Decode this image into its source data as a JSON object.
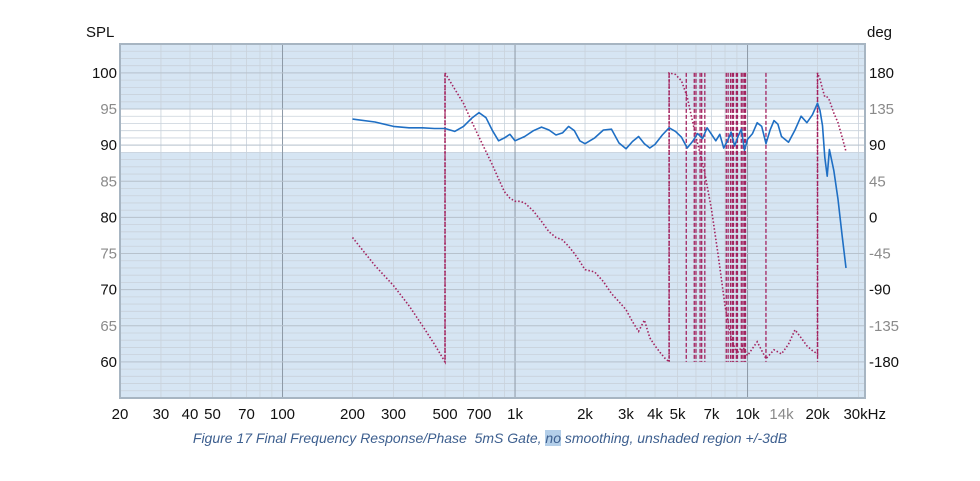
{
  "caption": {
    "before": "Figure 17 Final Frequency Response/Phase  5mS Gate, ",
    "highlight": "no",
    "after": " smoothing, unshaded region +/-3dB"
  },
  "chart_data": {
    "type": "line",
    "x_scale": "log",
    "xlim": [
      20,
      32000
    ],
    "ylim": [
      55,
      104
    ],
    "y2lim": [
      -225,
      216
    ],
    "ylabel": "SPL",
    "y2label": "deg",
    "x_ticks": [
      {
        "value": 20,
        "label": "20"
      },
      {
        "value": 30,
        "label": "30"
      },
      {
        "value": 40,
        "label": "40"
      },
      {
        "value": 50,
        "label": "50"
      },
      {
        "value": 70,
        "label": "70"
      },
      {
        "value": 100,
        "label": "100"
      },
      {
        "value": 200,
        "label": "200"
      },
      {
        "value": 300,
        "label": "300"
      },
      {
        "value": 500,
        "label": "500"
      },
      {
        "value": 700,
        "label": "700"
      },
      {
        "value": 1000,
        "label": "1k"
      },
      {
        "value": 2000,
        "label": "2k"
      },
      {
        "value": 3000,
        "label": "3k"
      },
      {
        "value": 4000,
        "label": "4k"
      },
      {
        "value": 5000,
        "label": "5k"
      },
      {
        "value": 7000,
        "label": "7k"
      },
      {
        "value": 10000,
        "label": "10k"
      },
      {
        "value": 14000,
        "label": "14k",
        "dim": true
      },
      {
        "value": 20000,
        "label": "20k"
      },
      {
        "value": 30000,
        "label": "30kHz"
      }
    ],
    "y_ticks": [
      {
        "value": 100,
        "label": "100"
      },
      {
        "value": 95,
        "label": "95",
        "dim": true
      },
      {
        "value": 90,
        "label": "90"
      },
      {
        "value": 85,
        "label": "85",
        "dim": true
      },
      {
        "value": 80,
        "label": "80"
      },
      {
        "value": 75,
        "label": "75",
        "dim": true
      },
      {
        "value": 70,
        "label": "70"
      },
      {
        "value": 65,
        "label": "65",
        "dim": true
      },
      {
        "value": 60,
        "label": "60"
      }
    ],
    "y2_ticks": [
      {
        "value": 180,
        "label": "180"
      },
      {
        "value": 135,
        "label": "135",
        "dim": true
      },
      {
        "value": 90,
        "label": "90"
      },
      {
        "value": 45,
        "label": "45",
        "dim": true
      },
      {
        "value": 0,
        "label": "0"
      },
      {
        "value": -45,
        "label": "-45",
        "dim": true
      },
      {
        "value": -90,
        "label": "-90"
      },
      {
        "value": -135,
        "label": "-135",
        "dim": true
      },
      {
        "value": -180,
        "label": "-180"
      }
    ],
    "unshaded_band": [
      89,
      95
    ],
    "colors": {
      "shade": "#d6e5f3",
      "band": "#ffffff",
      "frame": "#a7b5c2",
      "minor_grid": "#c9d2db",
      "major_grid": "#8d99a6",
      "spl": "#1f6fc4",
      "phase": "#a3235f"
    },
    "series": [
      {
        "key": "spl",
        "style": "solid",
        "points": [
          [
            200,
            93.6
          ],
          [
            250,
            93.2
          ],
          [
            300,
            92.6
          ],
          [
            350,
            92.4
          ],
          [
            400,
            92.4
          ],
          [
            450,
            92.3
          ],
          [
            500,
            92.3
          ],
          [
            550,
            91.9
          ],
          [
            600,
            92.6
          ],
          [
            650,
            93.7
          ],
          [
            700,
            94.5
          ],
          [
            750,
            93.8
          ],
          [
            800,
            92.0
          ],
          [
            850,
            90.6
          ],
          [
            900,
            91.0
          ],
          [
            950,
            91.5
          ],
          [
            1000,
            90.6
          ],
          [
            1100,
            91.2
          ],
          [
            1200,
            92.0
          ],
          [
            1300,
            92.5
          ],
          [
            1400,
            92.1
          ],
          [
            1500,
            91.4
          ],
          [
            1600,
            91.7
          ],
          [
            1700,
            92.6
          ],
          [
            1800,
            92.0
          ],
          [
            1900,
            90.6
          ],
          [
            2000,
            90.2
          ],
          [
            2200,
            91.0
          ],
          [
            2400,
            92.1
          ],
          [
            2600,
            92.2
          ],
          [
            2800,
            90.3
          ],
          [
            3000,
            89.5
          ],
          [
            3200,
            90.5
          ],
          [
            3400,
            91.2
          ],
          [
            3600,
            90.2
          ],
          [
            3800,
            89.6
          ],
          [
            4000,
            90.1
          ],
          [
            4300,
            91.4
          ],
          [
            4600,
            92.4
          ],
          [
            4900,
            91.9
          ],
          [
            5200,
            91.1
          ],
          [
            5500,
            89.6
          ],
          [
            5800,
            90.5
          ],
          [
            6100,
            91.6
          ],
          [
            6400,
            90.9
          ],
          [
            6700,
            92.4
          ],
          [
            7000,
            91.5
          ],
          [
            7300,
            90.6
          ],
          [
            7600,
            91.5
          ],
          [
            7900,
            89.6
          ],
          [
            8200,
            90.6
          ],
          [
            8500,
            91.8
          ],
          [
            8800,
            89.9
          ],
          [
            9100,
            91.2
          ],
          [
            9400,
            92.2
          ],
          [
            9700,
            89.3
          ],
          [
            10000,
            90.8
          ],
          [
            10500,
            91.6
          ],
          [
            11000,
            93.1
          ],
          [
            11500,
            92.6
          ],
          [
            12000,
            90.2
          ],
          [
            12500,
            92.1
          ],
          [
            13000,
            93.4
          ],
          [
            13500,
            92.9
          ],
          [
            14000,
            91.2
          ],
          [
            15000,
            90.4
          ],
          [
            16000,
            92.1
          ],
          [
            17000,
            94.0
          ],
          [
            18000,
            93.1
          ],
          [
            19000,
            94.2
          ],
          [
            20000,
            95.8
          ],
          [
            20500,
            94.8
          ],
          [
            21000,
            92.7
          ],
          [
            21500,
            88.3
          ],
          [
            22000,
            85.7
          ],
          [
            22500,
            89.4
          ],
          [
            23500,
            86.5
          ],
          [
            24500,
            82.5
          ],
          [
            25500,
            77.5
          ],
          [
            26500,
            73.0
          ]
        ]
      },
      {
        "key": "phase",
        "style": "dotted",
        "points": [
          [
            200,
            -25
          ],
          [
            250,
            -60
          ],
          [
            300,
            -85
          ],
          [
            350,
            -110
          ],
          [
            400,
            -135
          ],
          [
            450,
            -158
          ],
          [
            500,
            -180
          ],
          [
            500,
            180
          ],
          [
            550,
            160
          ],
          [
            600,
            142
          ],
          [
            650,
            120
          ],
          [
            700,
            100
          ],
          [
            750,
            82
          ],
          [
            800,
            65
          ],
          [
            850,
            48
          ],
          [
            900,
            32
          ],
          [
            950,
            24
          ],
          [
            1000,
            20
          ],
          [
            1050,
            20
          ],
          [
            1100,
            18
          ],
          [
            1200,
            8
          ],
          [
            1300,
            -5
          ],
          [
            1400,
            -18
          ],
          [
            1500,
            -25
          ],
          [
            1600,
            -28
          ],
          [
            1700,
            -36
          ],
          [
            1800,
            -45
          ],
          [
            1900,
            -55
          ],
          [
            2000,
            -65
          ],
          [
            2200,
            -68
          ],
          [
            2400,
            -80
          ],
          [
            2600,
            -95
          ],
          [
            2800,
            -105
          ],
          [
            3000,
            -115
          ],
          [
            3200,
            -130
          ],
          [
            3400,
            -142
          ],
          [
            3600,
            -128
          ],
          [
            3800,
            -150
          ],
          [
            4000,
            -160
          ],
          [
            4200,
            -168
          ],
          [
            4400,
            -175
          ],
          [
            4600,
            -180
          ],
          [
            4600,
            180
          ],
          [
            4900,
            178
          ],
          [
            5200,
            170
          ],
          [
            5500,
            150
          ],
          [
            6000,
            100
          ],
          [
            6500,
            60
          ],
          [
            7000,
            10
          ],
          [
            7500,
            -50
          ],
          [
            8000,
            -110
          ],
          [
            8500,
            -150
          ],
          [
            9000,
            -170
          ],
          [
            9500,
            -160
          ],
          [
            10000,
            -172
          ],
          [
            11000,
            -155
          ],
          [
            12000,
            -176
          ],
          [
            13000,
            -165
          ],
          [
            14000,
            -170
          ],
          [
            15000,
            -158
          ],
          [
            16000,
            -140
          ],
          [
            17000,
            -150
          ],
          [
            18000,
            -160
          ],
          [
            19000,
            -166
          ],
          [
            20000,
            -170
          ],
          [
            20000,
            180
          ],
          [
            20500,
            172
          ],
          [
            21000,
            160
          ],
          [
            21500,
            150
          ],
          [
            22000,
            150
          ],
          [
            22500,
            146
          ],
          [
            23500,
            130
          ],
          [
            24500,
            118
          ],
          [
            25500,
            100
          ],
          [
            26500,
            82
          ]
        ]
      },
      {
        "key": "phase_wraps",
        "style": "dashed",
        "freqs": [
          500,
          4600,
          5450,
          5900,
          6000,
          6250,
          6350,
          6550,
          8100,
          8250,
          8450,
          8600,
          8700,
          8950,
          9050,
          9400,
          9550,
          9700,
          9800,
          12000,
          20000
        ]
      }
    ]
  }
}
